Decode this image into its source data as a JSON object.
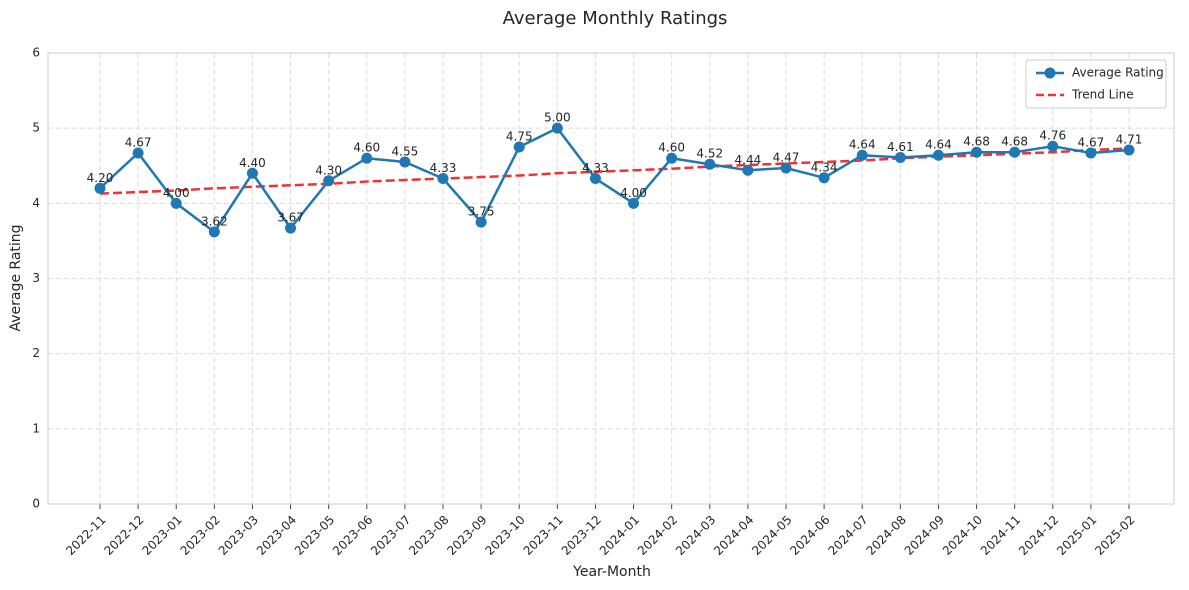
{
  "chart_data": {
    "type": "line",
    "title": "Average Monthly Ratings",
    "x_label": "Year-Month",
    "y_label": "Average Rating",
    "categories": [
      "2022-11",
      "2022-12",
      "2023-01",
      "2023-02",
      "2023-03",
      "2023-04",
      "2023-05",
      "2023-06",
      "2023-07",
      "2023-08",
      "2023-09",
      "2023-10",
      "2023-11",
      "2023-12",
      "2024-01",
      "2024-02",
      "2024-03",
      "2024-04",
      "2024-05",
      "2024-06",
      "2024-07",
      "2024-08",
      "2024-09",
      "2024-10",
      "2024-11",
      "2024-12",
      "2025-01",
      "2025-02"
    ],
    "series": [
      {
        "name": "Average Rating",
        "color": "#1f77b4",
        "style": "solid",
        "markers": true,
        "values": [
          4.2,
          4.67,
          4.0,
          3.62,
          4.4,
          3.67,
          4.3,
          4.6,
          4.55,
          4.33,
          3.75,
          4.75,
          5.0,
          4.33,
          4.0,
          4.6,
          4.52,
          4.44,
          4.47,
          4.34,
          4.64,
          4.61,
          4.64,
          4.68,
          4.68,
          4.76,
          4.67,
          4.71
        ],
        "value_labels": [
          "4.20",
          "4.67",
          "4.00",
          "3.62",
          "4.40",
          "3.67",
          "4.30",
          "4.60",
          "4.55",
          "4.33",
          "3.75",
          "4.75",
          "5.00",
          "4.33",
          "4.00",
          "4.60",
          "4.52",
          "4.44",
          "4.47",
          "4.34",
          "4.64",
          "4.61",
          "4.64",
          "4.68",
          "4.68",
          "4.76",
          "4.67",
          "4.71"
        ]
      },
      {
        "name": "Trend Line",
        "color": "#ee3333",
        "style": "dashed",
        "markers": false,
        "values": [
          4.13,
          4.15,
          4.17,
          4.2,
          4.22,
          4.24,
          4.26,
          4.29,
          4.31,
          4.33,
          4.35,
          4.37,
          4.4,
          4.42,
          4.44,
          4.46,
          4.49,
          4.51,
          4.53,
          4.55,
          4.57,
          4.6,
          4.62,
          4.64,
          4.66,
          4.68,
          4.71,
          4.73
        ]
      }
    ],
    "ylim": [
      0,
      6
    ],
    "yticks": [
      0,
      1,
      2,
      3,
      4,
      5,
      6
    ],
    "grid": true,
    "legend": "upper right"
  }
}
